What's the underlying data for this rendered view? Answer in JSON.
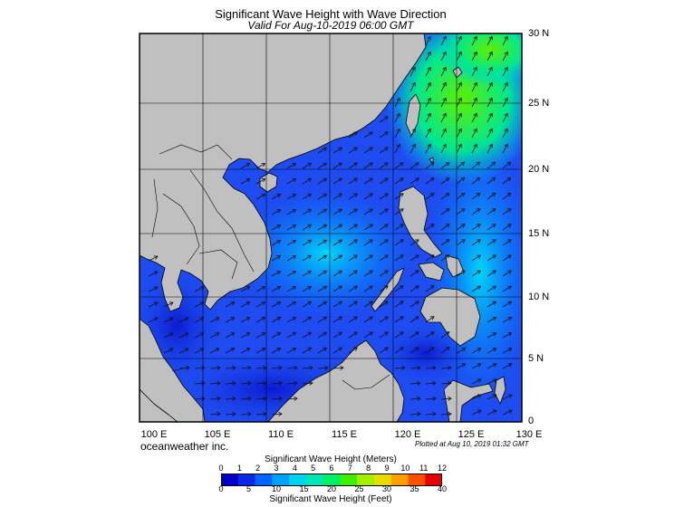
{
  "header": {
    "title": "Significant Wave Height with Wave Direction",
    "subtitle": "Valid For Aug-10-2019 06:00 GMT"
  },
  "map": {
    "longitude_labels": [
      "100 E",
      "105 E",
      "110 E",
      "115 E",
      "120 E",
      "125 E",
      "130 E"
    ],
    "latitude_labels": [
      "30 N",
      "25 N",
      "20 N",
      "15 N",
      "10 N",
      "5 N",
      "0"
    ],
    "colors": {
      "land": "#c0c0c0",
      "coast": "#000000",
      "arrows": "#111111",
      "grid": "#000000"
    }
  },
  "footer": {
    "vendor": "oceanweather inc.",
    "plotted": "Plotted at Aug 10, 2019 01:32 GMT"
  },
  "colorbar": {
    "title_meters": "Significant Wave Height (Meters)",
    "title_feet": "Significant Wave Height (Feet)",
    "meters_ticks": [
      "0",
      "1",
      "2",
      "3",
      "4",
      "5",
      "6",
      "7",
      "8",
      "9",
      "10",
      "11",
      "12"
    ],
    "feet_ticks": [
      "0",
      "5",
      "10",
      "15",
      "20",
      "25",
      "30",
      "35",
      "40"
    ],
    "colors": [
      "#0000c8",
      "#0a28e6",
      "#0064ff",
      "#00a0ff",
      "#00d2f0",
      "#00e6b4",
      "#00f064",
      "#3cf000",
      "#a0f000",
      "#e6dc00",
      "#ffa000",
      "#ff5000",
      "#e60000"
    ]
  }
}
